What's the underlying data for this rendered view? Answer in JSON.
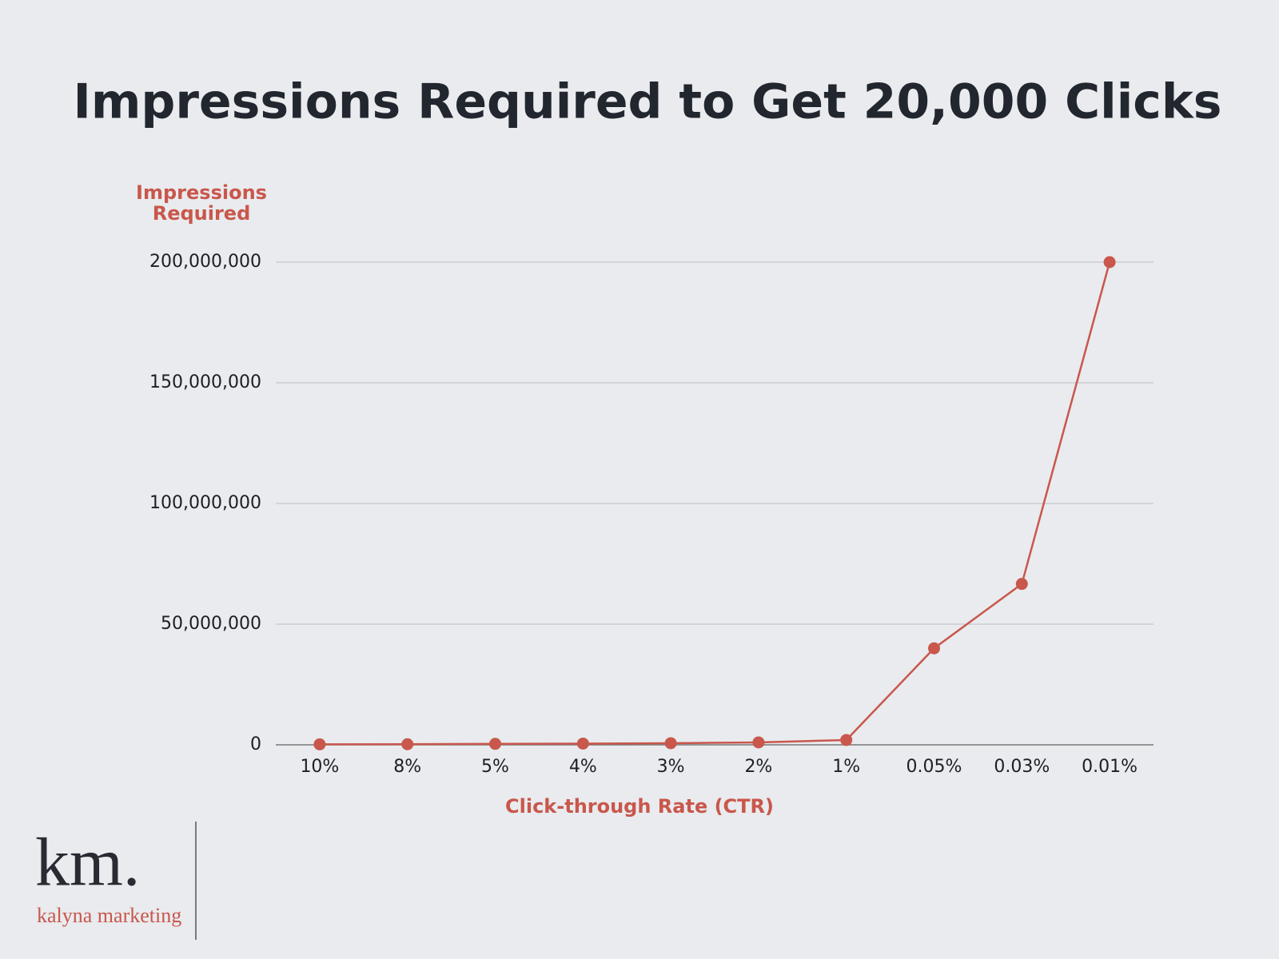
{
  "chart_data": {
    "type": "line",
    "title": "Impressions Required to Get 20,000 Clicks",
    "y_label": "Impressions Required",
    "x_label": "Click-through Rate (CTR)",
    "categories": [
      "10%",
      "8%",
      "5%",
      "4%",
      "3%",
      "2%",
      "1%",
      "0.05%",
      "0.03%",
      "0.01%"
    ],
    "values": [
      200000,
      250000,
      400000,
      500000,
      666667,
      1000000,
      2000000,
      40000000,
      66666667,
      200000000
    ],
    "color": "#c9574c",
    "ylim": [
      0,
      200000000
    ],
    "yticks": [
      0,
      {
        "value": 50000000,
        "label": "50,000,000"
      },
      {
        "value": 100000000,
        "label": "100,000,000"
      },
      {
        "value": 150000000,
        "label": "150,000,000"
      },
      {
        "value": 200000000,
        "label": "200,000,000"
      }
    ],
    "grid": true
  },
  "logo": {
    "mark": "km.",
    "name": "kalyna marketing"
  }
}
